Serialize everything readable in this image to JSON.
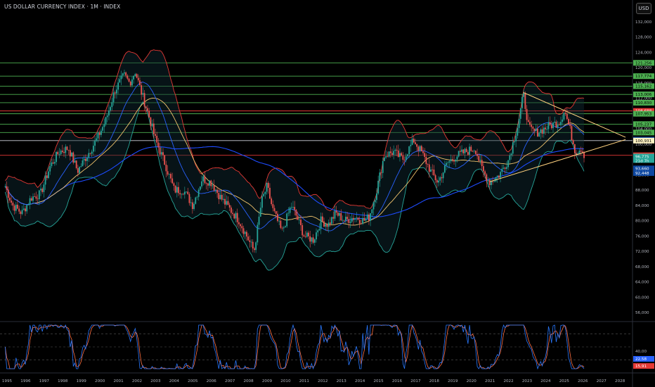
{
  "header": {
    "title": "US DOLLAR CURRENCY INDEX · 1M · INDEX",
    "currency_button": "USD"
  },
  "colors": {
    "background": "#000000",
    "horizontal_levels_green": "#4caf50",
    "level_white": "#d1d4dc",
    "level_red": "#e53935",
    "trendline": "#ffd27f",
    "upper_band": "#e53935",
    "lower_band": "#26a69a",
    "ma_blue_short": "#2962ff",
    "ma_yellow": "#f0c36d",
    "ma_blue_long": "#1e4cff",
    "stoch_k": "#2979ff",
    "stoch_d": "#ff7043"
  },
  "chart_data": {
    "type": "line",
    "title": "US DOLLAR CURRENCY INDEX · 1M · INDEX",
    "x_ticks": [
      "1995",
      "1996",
      "1997",
      "1998",
      "1999",
      "2000",
      "2001",
      "2002",
      "2003",
      "2004",
      "2005",
      "2006",
      "2007",
      "2008",
      "2009",
      "2010",
      "2011",
      "2012",
      "2013",
      "2014",
      "2015",
      "2016",
      "2017",
      "2018",
      "2019",
      "2020",
      "2021",
      "2022",
      "2023",
      "2024",
      "2025",
      "2026",
      "2027",
      "2028"
    ],
    "y_ticks": [
      "132,000",
      "128,000",
      "124,000",
      "120,000",
      "116,000",
      "112,000",
      "108,000",
      "104,000",
      "100,000",
      "96,000",
      "92,000",
      "88,000",
      "84,000",
      "80,000",
      "76,000",
      "72,000",
      "68,000",
      "64,000",
      "60,000",
      "56,000"
    ],
    "ylim": [
      54,
      134
    ],
    "yscale": "linear",
    "price_series": {
      "name": "DXY",
      "x": [
        1994.9,
        1995.3,
        1995.8,
        1996.3,
        1996.8,
        1997.3,
        1997.8,
        1998.3,
        1998.8,
        1999.3,
        1999.8,
        2000.3,
        2000.8,
        2001.3,
        2001.6,
        2001.9,
        2002.2,
        2002.6,
        2003.0,
        2003.5,
        2004.0,
        2004.5,
        2005.0,
        2005.5,
        2006.0,
        2006.5,
        2007.0,
        2007.5,
        2008.0,
        2008.3,
        2008.7,
        2009.0,
        2009.3,
        2009.8,
        2010.3,
        2010.6,
        2011.0,
        2011.5,
        2011.9,
        2012.3,
        2012.7,
        2013.2,
        2013.7,
        2014.2,
        2014.5,
        2014.9,
        2015.3,
        2015.8,
        2016.3,
        2016.9,
        2017.3,
        2017.8,
        2018.2,
        2018.7,
        2019.2,
        2019.7,
        2020.2,
        2020.6,
        2021.0,
        2021.5,
        2022.0,
        2022.5,
        2022.8,
        2023.1,
        2023.5,
        2023.9,
        2024.3,
        2024.8,
        2025.0,
        2025.3,
        2025.6,
        2025.9,
        2026.1
      ],
      "y": [
        89,
        84,
        82,
        86,
        87,
        94,
        98,
        99,
        93,
        97,
        101,
        106,
        114,
        118,
        116,
        119,
        114,
        108,
        101,
        95,
        88,
        88,
        84,
        91,
        90,
        86,
        83,
        80,
        75,
        72,
        85,
        89,
        83,
        77,
        84,
        81,
        76,
        75,
        80,
        79,
        82,
        80,
        81,
        80,
        81,
        88,
        97,
        98,
        96,
        101,
        98,
        93,
        90,
        95,
        97,
        98,
        99,
        93,
        90,
        92,
        96,
        105,
        113,
        104,
        103,
        104,
        105,
        106,
        109,
        104,
        98,
        99,
        97
      ]
    },
    "stochastic": {
      "ticks": [
        "40,00"
      ],
      "levels_ylim": [
        0,
        100
      ],
      "k_latest": "22,58",
      "d_latest": "15,91"
    },
    "price_levels": [
      {
        "label": "121,256",
        "value": 121.256,
        "style": "green"
      },
      {
        "label": "117,774",
        "value": 117.774,
        "style": "green"
      },
      {
        "label": "115,162",
        "value": 115.162,
        "style": "green"
      },
      {
        "label": "113,006",
        "value": 113.006,
        "style": "green"
      },
      {
        "label": "110,830",
        "value": 110.83,
        "style": "green"
      },
      {
        "label": "108,688",
        "value": 108.688,
        "style": "red-badge"
      },
      {
        "label": "107,953",
        "value": 107.953,
        "style": "green"
      },
      {
        "label": "105,237",
        "value": 105.237,
        "style": "green"
      },
      {
        "label": "103,045",
        "value": 103.045,
        "style": "green"
      },
      {
        "label": "101,267",
        "value": 101.267,
        "style": "label-only"
      },
      {
        "label": "101,174",
        "value": 101.174,
        "style": "blue-badge"
      },
      {
        "label": "100,931",
        "value": 100.931,
        "style": "white"
      },
      {
        "label": "97,088",
        "value": 97.088,
        "style": "red"
      }
    ],
    "badges": [
      {
        "label": "96,775",
        "sub": "21d 7h",
        "value": 96.775,
        "color": "#26a69a"
      },
      {
        "label": "93,660",
        "value": 93.66,
        "color": "#0d47a1"
      },
      {
        "label": "92,448",
        "value": 92.448,
        "color": "#0d47a1"
      }
    ],
    "trendlines": [
      {
        "x": [
          2021.0,
          2028.3
        ],
        "y": [
          90.2,
          101.2
        ]
      },
      {
        "x": [
          2022.8,
          2028.3
        ],
        "y": [
          113.5,
          101.8
        ]
      }
    ]
  }
}
